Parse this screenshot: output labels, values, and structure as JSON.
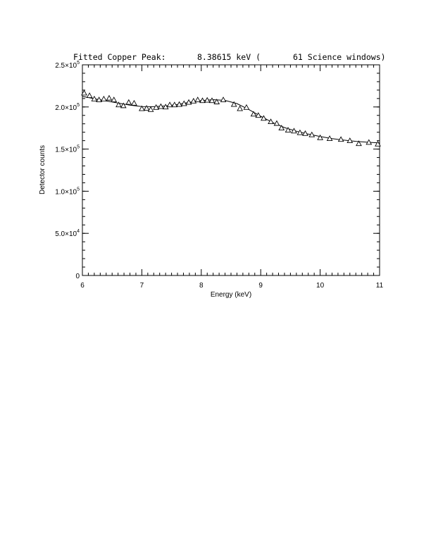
{
  "chart_data": {
    "type": "scatter",
    "title_segments": [
      "Fitted Copper Peak:",
      "8.38615 keV (",
      "61 Science windows)"
    ],
    "xlabel": "Energy (keV)",
    "ylabel": "Detector counts",
    "xlim": [
      6,
      11
    ],
    "ylim": [
      0,
      250000
    ],
    "grid": false,
    "x_ticks": [
      6,
      7,
      8,
      9,
      10,
      11
    ],
    "x_tick_labels": [
      "6",
      "7",
      "8",
      "9",
      "10",
      "11"
    ],
    "y_ticks": [
      0,
      50000,
      100000,
      150000,
      200000,
      250000
    ],
    "y_tick_labels": [
      {
        "mant": "0",
        "exp": ""
      },
      {
        "mant": "5.0×10",
        "exp": "4"
      },
      {
        "mant": "1.0×10",
        "exp": "5"
      },
      {
        "mant": "1.5×10",
        "exp": "5"
      },
      {
        "mant": "2.0×10",
        "exp": "5"
      },
      {
        "mant": "2.5×10",
        "exp": "5"
      }
    ],
    "series": [
      {
        "marker": "triangle",
        "x": [
          6.03,
          6.12,
          6.2,
          6.28,
          6.36,
          6.45,
          6.53,
          6.61,
          6.69,
          6.78,
          6.87,
          7.0,
          7.08,
          7.15,
          7.24,
          7.32,
          7.4,
          7.47,
          7.55,
          7.63,
          7.71,
          7.79,
          7.87,
          7.94,
          8.02,
          8.1,
          8.18,
          8.26,
          8.37,
          8.55,
          8.65,
          8.76,
          8.88,
          8.96,
          9.05,
          9.17,
          9.27,
          9.35,
          9.46,
          9.56,
          9.66,
          9.75,
          9.86,
          10.0,
          10.16,
          10.35,
          10.5,
          10.65,
          10.82,
          10.97
        ],
        "y": [
          216500,
          213500,
          209500,
          208500,
          209500,
          210500,
          208500,
          202500,
          201500,
          205500,
          204500,
          198000,
          198500,
          197000,
          199500,
          200500,
          200000,
          202500,
          202500,
          203000,
          204000,
          205500,
          207000,
          208500,
          207500,
          208000,
          207500,
          206000,
          208500,
          203000,
          198000,
          199500,
          191500,
          190000,
          186500,
          182500,
          180500,
          175000,
          172500,
          171500,
          169500,
          168500,
          167000,
          163500,
          162500,
          161500,
          160000,
          156500,
          158000,
          156000
        ]
      },
      {
        "marker": "line",
        "x": [
          6.0,
          6.2,
          6.4,
          6.6,
          6.8,
          7.0,
          7.2,
          7.4,
          7.6,
          7.8,
          8.0,
          8.2,
          8.4,
          8.6,
          8.8,
          9.0,
          9.2,
          9.4,
          9.6,
          9.8,
          10.0,
          10.2,
          10.4,
          10.6,
          10.8,
          11.0
        ],
        "y": [
          212500,
          209800,
          207200,
          204600,
          202200,
          200500,
          200300,
          201200,
          203000,
          205500,
          207500,
          208600,
          207800,
          204000,
          197000,
          189000,
          181500,
          175500,
          171200,
          167800,
          164900,
          162500,
          160600,
          159200,
          158100,
          157300
        ]
      }
    ]
  }
}
